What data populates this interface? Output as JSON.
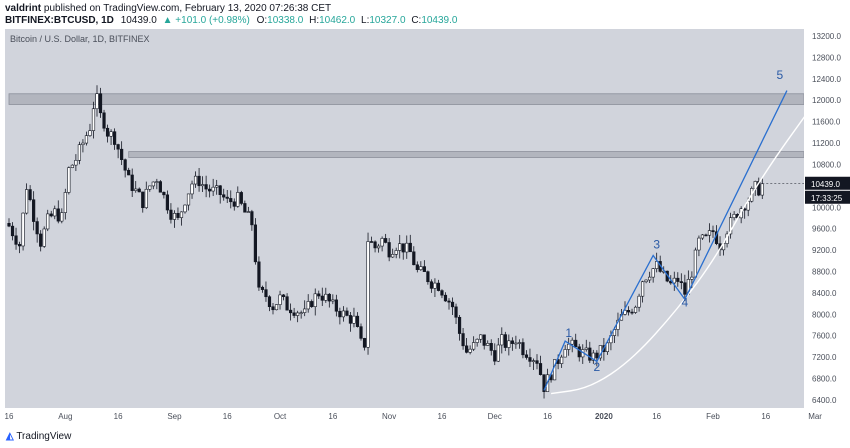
{
  "header": {
    "author": "valdrint",
    "published": "published on TradingView.com, February 13, 2020 07:26:38 CET",
    "symbol": "BITFINEX:BTCUSD, 1D",
    "last": "10439.0",
    "change": "▲ +101.0 (+0.98%)",
    "open_label": "O:",
    "open": "10338.0",
    "high_label": "H:",
    "high": "10462.0",
    "low_label": "L:",
    "low": "10327.0",
    "close_label": "C:",
    "close": "10439.0"
  },
  "footer": {
    "brand": "TradingView"
  },
  "colors": {
    "plot_bg": "#d1d4dc",
    "candle": "#131722",
    "zone": "#b2b5be",
    "wave": "#2a6fcf",
    "curve": "#ffffff",
    "up": "#26a69a",
    "price_tag": "#131722"
  },
  "chart_data": {
    "type": "candlestick",
    "title": "Bitcoin / U.S. Dollar, 1D, BITFINEX",
    "y_ticks": [
      6400,
      6800,
      7200,
      7600,
      8000,
      8400,
      8800,
      9200,
      9600,
      10000,
      10400,
      10800,
      11200,
      11600,
      12000,
      12400,
      12800,
      13200
    ],
    "y_tick_labels": [
      "6400.0",
      "6800.0",
      "7200.0",
      "7600.0",
      "8000.0",
      "8400.0",
      "8800.0",
      "9200.0",
      "9600.0",
      "10000.0",
      "10400.0",
      "10800.0",
      "11200.0",
      "11600.0",
      "12000.0",
      "12400.0",
      "12800.0",
      "13200.0"
    ],
    "ylim": [
      6250,
      13330
    ],
    "x_labels": [
      "16",
      "Aug",
      "16",
      "Sep",
      "16",
      "Oct",
      "16",
      "Nov",
      "16",
      "Dec",
      "16",
      "2020",
      "16",
      "Feb",
      "16",
      "Mar"
    ],
    "x_label_day_index": [
      0,
      16,
      31,
      47,
      62,
      77,
      92,
      108,
      123,
      138,
      153,
      169,
      184,
      200,
      215,
      229
    ],
    "last_price_label": "10439.0",
    "countdown_label": "17:33:25",
    "zones": [
      {
        "y_low": 11920,
        "y_high": 12120,
        "x_start_day": 0,
        "x_end_day": 229
      },
      {
        "y_low": 10930,
        "y_high": 11040,
        "x_start_day": 34,
        "x_end_day": 229
      }
    ],
    "wave_labels": [
      {
        "label": "1",
        "day": 159,
        "price": 7580
      },
      {
        "label": "2",
        "day": 167,
        "price": 6940
      },
      {
        "label": "3",
        "day": 184,
        "price": 9230
      },
      {
        "label": "4",
        "day": 192,
        "price": 8150
      },
      {
        "label": "5",
        "day": 219,
        "price": 12400
      }
    ],
    "wave_path": [
      {
        "day": 152,
        "price": 6580
      },
      {
        "day": 158,
        "price": 7500
      },
      {
        "day": 167,
        "price": 7120
      },
      {
        "day": 183,
        "price": 9100
      },
      {
        "day": 192,
        "price": 8280
      },
      {
        "day": 221,
        "price": 12180
      }
    ],
    "curve_path": [
      {
        "day": 154,
        "price": 6520
      },
      {
        "day": 165,
        "price": 6620
      },
      {
        "day": 177,
        "price": 7150
      },
      {
        "day": 190,
        "price": 8100
      },
      {
        "day": 201,
        "price": 9080
      },
      {
        "day": 213,
        "price": 10500
      },
      {
        "day": 231,
        "price": 12150
      }
    ],
    "close_anchors": [
      [
        0,
        9650
      ],
      [
        3,
        9300
      ],
      [
        5,
        10400
      ],
      [
        7,
        9850
      ],
      [
        9,
        9350
      ],
      [
        11,
        9750
      ],
      [
        13,
        9900
      ],
      [
        15,
        9800
      ],
      [
        17,
        10700
      ],
      [
        19,
        10900
      ],
      [
        21,
        11200
      ],
      [
        23,
        11500
      ],
      [
        24,
        11900
      ],
      [
        25,
        12000
      ],
      [
        26,
        11700
      ],
      [
        27,
        11600
      ],
      [
        28,
        11400
      ],
      [
        30,
        11300
      ],
      [
        32,
        10900
      ],
      [
        34,
        10500
      ],
      [
        36,
        10300
      ],
      [
        38,
        10100
      ],
      [
        40,
        10400
      ],
      [
        42,
        10550
      ],
      [
        44,
        10200
      ],
      [
        46,
        9900
      ],
      [
        48,
        9750
      ],
      [
        50,
        10150
      ],
      [
        52,
        10450
      ],
      [
        54,
        10500
      ],
      [
        56,
        10350
      ],
      [
        58,
        10300
      ],
      [
        60,
        10250
      ],
      [
        62,
        10100
      ],
      [
        65,
        10150
      ],
      [
        67,
        9900
      ],
      [
        69,
        9700
      ],
      [
        71,
        8400
      ],
      [
        73,
        8350
      ],
      [
        75,
        8150
      ],
      [
        77,
        8300
      ],
      [
        79,
        8150
      ],
      [
        81,
        8100
      ],
      [
        84,
        8000
      ],
      [
        86,
        8250
      ],
      [
        88,
        8400
      ],
      [
        90,
        8300
      ],
      [
        92,
        8150
      ],
      [
        94,
        8050
      ],
      [
        96,
        7950
      ],
      [
        98,
        7900
      ],
      [
        100,
        7450
      ],
      [
        101,
        7450
      ],
      [
        102,
        9400
      ],
      [
        104,
        9250
      ],
      [
        106,
        9400
      ],
      [
        108,
        9200
      ],
      [
        110,
        9300
      ],
      [
        112,
        9250
      ],
      [
        114,
        9150
      ],
      [
        116,
        8800
      ],
      [
        118,
        8750
      ],
      [
        120,
        8600
      ],
      [
        122,
        8550
      ],
      [
        124,
        8350
      ],
      [
        126,
        8150
      ],
      [
        128,
        7650
      ],
      [
        130,
        7300
      ],
      [
        132,
        7400
      ],
      [
        134,
        7550
      ],
      [
        136,
        7400
      ],
      [
        138,
        7250
      ],
      [
        140,
        7500
      ],
      [
        142,
        7400
      ],
      [
        144,
        7550
      ],
      [
        146,
        7350
      ],
      [
        148,
        7250
      ],
      [
        150,
        7150
      ],
      [
        152,
        6650
      ],
      [
        154,
        6900
      ],
      [
        156,
        7150
      ],
      [
        158,
        7450
      ],
      [
        160,
        7400
      ],
      [
        162,
        7300
      ],
      [
        164,
        7250
      ],
      [
        166,
        7200
      ],
      [
        168,
        7300
      ],
      [
        170,
        7400
      ],
      [
        172,
        7700
      ],
      [
        174,
        7950
      ],
      [
        176,
        8050
      ],
      [
        178,
        8200
      ],
      [
        180,
        8650
      ],
      [
        182,
        8800
      ],
      [
        184,
        8900
      ],
      [
        186,
        8700
      ],
      [
        188,
        8550
      ],
      [
        190,
        8650
      ],
      [
        192,
        8400
      ],
      [
        194,
        8800
      ],
      [
        196,
        9350
      ],
      [
        198,
        9400
      ],
      [
        200,
        9550
      ],
      [
        202,
        9300
      ],
      [
        204,
        9600
      ],
      [
        206,
        9800
      ],
      [
        208,
        10000
      ],
      [
        210,
        10150
      ],
      [
        212,
        10360
      ],
      [
        213,
        10339
      ],
      [
        214,
        10439
      ]
    ]
  }
}
